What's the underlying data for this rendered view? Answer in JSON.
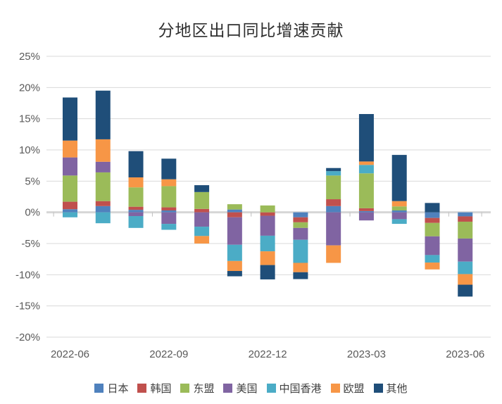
{
  "chart_data": {
    "type": "bar",
    "subtype": "stacked-column",
    "title": "分地区出口同比增速贡献",
    "ylabel": "",
    "xlabel": "",
    "ylim": [
      -20,
      25
    ],
    "y_tick_step": 5,
    "y_tick_suffix": "%",
    "grid": "horizontal",
    "legend_position": "bottom",
    "categories": [
      "2022-06",
      "2022-07",
      "2022-08",
      "2022-09",
      "2022-10",
      "2022-11",
      "2022-12",
      "2023-01",
      "2023-02",
      "2023-03",
      "2023-04",
      "2023-05",
      "2023-06"
    ],
    "x_tick_labels": [
      "2022-06",
      "2022-09",
      "2022-12",
      "2023-03",
      "2023-06"
    ],
    "x_tick_category_indexes": [
      0,
      3,
      6,
      9,
      12
    ],
    "series": [
      {
        "name": "日本",
        "color": "#4F81BD",
        "values": [
          0.5,
          1.0,
          0.4,
          0.3,
          0.0,
          0.45,
          0.0,
          -0.8,
          1.0,
          0.2,
          0.3,
          -0.9,
          -0.65
        ]
      },
      {
        "name": "韩国",
        "color": "#C0504D",
        "values": [
          1.2,
          0.8,
          0.5,
          0.5,
          0.55,
          -0.8,
          -0.55,
          -0.8,
          1.1,
          0.45,
          0.0,
          -0.8,
          -0.85
        ]
      },
      {
        "name": "东盟",
        "color": "#9BBB59",
        "values": [
          4.2,
          4.6,
          3.1,
          3.4,
          2.7,
          0.85,
          1.1,
          -0.9,
          3.8,
          5.6,
          0.65,
          -2.15,
          -2.7
        ]
      },
      {
        "name": "美国",
        "color": "#8064A2",
        "values": [
          2.9,
          1.7,
          -0.6,
          -1.85,
          -2.3,
          -4.4,
          -3.2,
          -1.9,
          -5.3,
          -1.3,
          -1.1,
          -3.0,
          -3.7
        ]
      },
      {
        "name": "中国香港",
        "color": "#4BACC6",
        "values": [
          -0.8,
          -1.75,
          -1.9,
          -0.95,
          -1.5,
          -2.6,
          -2.5,
          -3.7,
          0.7,
          1.35,
          -0.75,
          -1.2,
          -2.0
        ]
      },
      {
        "name": "欧盟",
        "color": "#F79646",
        "values": [
          2.7,
          3.6,
          1.6,
          1.1,
          -1.2,
          -1.6,
          -2.2,
          -1.5,
          -2.8,
          0.55,
          0.85,
          -1.1,
          -1.7
        ]
      },
      {
        "name": "其他",
        "color": "#1F4E79",
        "values": [
          6.9,
          7.8,
          4.2,
          3.3,
          1.1,
          -0.85,
          -2.3,
          -1.1,
          0.5,
          7.6,
          7.4,
          1.5,
          -1.9
        ]
      }
    ],
    "colors": {
      "gridline": "#D9D9D9",
      "zero_axis": "#D6D6D6",
      "axis_tick": "#BFBFBF",
      "tick_text": "#595959",
      "title_text": "#2F2F2F"
    }
  }
}
